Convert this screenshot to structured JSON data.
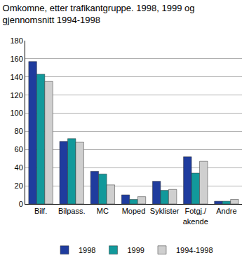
{
  "chart_data": {
    "type": "bar",
    "title": "Omkomne, etter trafikantgruppe. 1998, 1999 og\ngjennomsnitt 1994-1998",
    "categories": [
      "Bilf.",
      "Bilpass.",
      "MC",
      "Moped",
      "Syklister",
      "Fotgj./\nakende",
      "Andre"
    ],
    "series": [
      {
        "name": "1998",
        "color": "#1f3c9e",
        "values": [
          157,
          69,
          36,
          10,
          25,
          52,
          3
        ]
      },
      {
        "name": "1999",
        "color": "#12999b",
        "values": [
          143,
          72,
          33,
          5,
          15,
          34,
          3
        ]
      },
      {
        "name": "1994-1998",
        "color": "#cfcfcf",
        "values": [
          135,
          68,
          21,
          8,
          16,
          47,
          5
        ]
      }
    ],
    "ylim": [
      0,
      180
    ],
    "yticks": [
      0,
      20,
      40,
      60,
      80,
      100,
      120,
      140,
      160,
      180
    ],
    "grid": true,
    "legend": "bottom"
  }
}
